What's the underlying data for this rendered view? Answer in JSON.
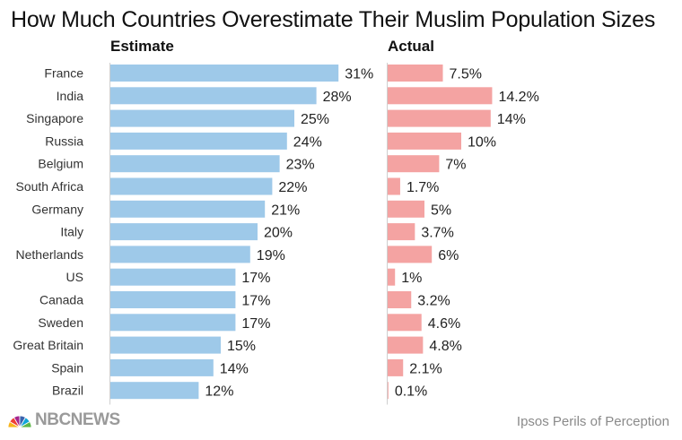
{
  "title": "How Much Countries Overestimate Their Muslim Population Sizes",
  "chart_data": {
    "type": "bar",
    "orientation": "horizontal",
    "title": "How Much Countries Overestimate Their Muslim Population Sizes",
    "categories": [
      "France",
      "India",
      "Singapore",
      "Russia",
      "Belgium",
      "South Africa",
      "Germany",
      "Italy",
      "Netherlands",
      "US",
      "Canada",
      "Sweden",
      "Great Britain",
      "Spain",
      "Brazil"
    ],
    "series": [
      {
        "name": "Estimate",
        "values": [
          31,
          28,
          25,
          24,
          23,
          22,
          21,
          20,
          19,
          17,
          17,
          17,
          15,
          14,
          12
        ],
        "labels": [
          "31%",
          "28%",
          "25%",
          "24%",
          "23%",
          "22%",
          "21%",
          "20%",
          "19%",
          "17%",
          "17%",
          "17%",
          "15%",
          "14%",
          "12%"
        ],
        "color": "#9ec9e9"
      },
      {
        "name": "Actual",
        "values": [
          7.5,
          14.2,
          14,
          10,
          7,
          1.7,
          5,
          3.7,
          6,
          1,
          3.2,
          4.6,
          4.8,
          2.1,
          0.1
        ],
        "labels": [
          "7.5%",
          "14.2%",
          "14%",
          "10%",
          "7%",
          "1.7%",
          "5%",
          "3.7%",
          "6%",
          "1%",
          "3.2%",
          "4.6%",
          "4.8%",
          "2.1%",
          "0.1%"
        ],
        "color": "#f4a3a2"
      }
    ],
    "xlabel": "",
    "ylabel": "",
    "grid": false,
    "legend": "none"
  },
  "footer": {
    "logo_text": "NBCNEWS",
    "source": "Ipsos Perils of Perception"
  },
  "colors": {
    "axis": "#cfcfcf",
    "peacock": [
      "#f7b51d",
      "#ef4135",
      "#a5258f",
      "#3b62ad",
      "#10a5d9",
      "#5db648"
    ]
  }
}
